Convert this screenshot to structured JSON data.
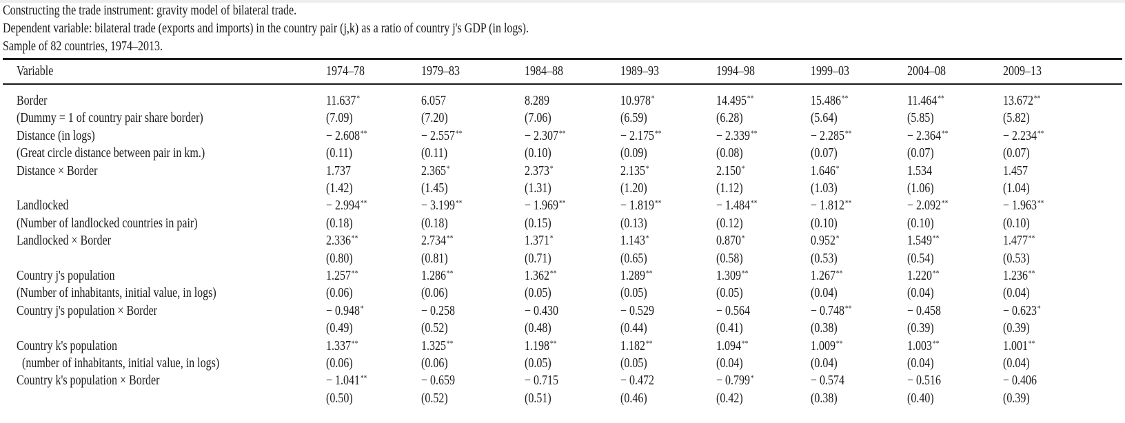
{
  "caption": {
    "line1": "Constructing the trade instrument: gravity model of bilateral trade.",
    "line2": "Dependent variable: bilateral trade (exports and imports) in the country pair (j,k) as a ratio of country j's GDP (in logs).",
    "line3": "Sample of 82 countries, 1974–2013."
  },
  "table": {
    "header": [
      "Variable",
      "1974–78",
      "1979–83",
      "1984–88",
      "1989–93",
      "1994–98",
      "1999–03",
      "2004–08",
      "2009–13"
    ],
    "rows": [
      {
        "label": "Border",
        "cells": [
          [
            "11.637",
            "*"
          ],
          [
            "6.057",
            ""
          ],
          [
            "8.289",
            ""
          ],
          [
            "10.978",
            "*"
          ],
          [
            "14.495",
            "**"
          ],
          [
            "15.486",
            "**"
          ],
          [
            "11.464",
            "**"
          ],
          [
            "13.672",
            "**"
          ]
        ]
      },
      {
        "label": "(Dummy = 1 of country pair share border)",
        "cells": [
          [
            "(7.09)",
            ""
          ],
          [
            "(7.20)",
            ""
          ],
          [
            "(7.06)",
            ""
          ],
          [
            "(6.59)",
            ""
          ],
          [
            "(6.28)",
            ""
          ],
          [
            "(5.64)",
            ""
          ],
          [
            "(5.85)",
            ""
          ],
          [
            "(5.82)",
            ""
          ]
        ]
      },
      {
        "label": "Distance (in logs)",
        "cells": [
          [
            "− 2.608",
            "**"
          ],
          [
            "− 2.557",
            "**"
          ],
          [
            "− 2.307",
            "**"
          ],
          [
            "− 2.175",
            "**"
          ],
          [
            "− 2.339",
            "**"
          ],
          [
            "− 2.285",
            "**"
          ],
          [
            "− 2.364",
            "**"
          ],
          [
            "− 2.234",
            "**"
          ]
        ]
      },
      {
        "label": "(Great circle distance between pair in km.)",
        "cells": [
          [
            "(0.11)",
            ""
          ],
          [
            "(0.11)",
            ""
          ],
          [
            "(0.10)",
            ""
          ],
          [
            "(0.09)",
            ""
          ],
          [
            "(0.08)",
            ""
          ],
          [
            "(0.07)",
            ""
          ],
          [
            "(0.07)",
            ""
          ],
          [
            "(0.07)",
            ""
          ]
        ]
      },
      {
        "label": "Distance × Border",
        "cells": [
          [
            "1.737",
            ""
          ],
          [
            "2.365",
            "*"
          ],
          [
            "2.373",
            "*"
          ],
          [
            "2.135",
            "*"
          ],
          [
            "2.150",
            "*"
          ],
          [
            "1.646",
            "*"
          ],
          [
            "1.534",
            ""
          ],
          [
            "1.457",
            ""
          ]
        ]
      },
      {
        "label": "",
        "cells": [
          [
            "(1.42)",
            ""
          ],
          [
            "(1.45)",
            ""
          ],
          [
            "(1.31)",
            ""
          ],
          [
            "(1.20)",
            ""
          ],
          [
            "(1.12)",
            ""
          ],
          [
            "(1.03)",
            ""
          ],
          [
            "(1.06)",
            ""
          ],
          [
            "(1.04)",
            ""
          ]
        ]
      },
      {
        "label": "Landlocked",
        "cells": [
          [
            "− 2.994",
            "**"
          ],
          [
            "− 3.199",
            "**"
          ],
          [
            "− 1.969",
            "**"
          ],
          [
            "− 1.819",
            "**"
          ],
          [
            "− 1.484",
            "**"
          ],
          [
            "− 1.812",
            "**"
          ],
          [
            "− 2.092",
            "**"
          ],
          [
            "− 1.963",
            "**"
          ]
        ]
      },
      {
        "label": "(Number of landlocked countries in pair)",
        "cells": [
          [
            "(0.18)",
            ""
          ],
          [
            "(0.18)",
            ""
          ],
          [
            "(0.15)",
            ""
          ],
          [
            "(0.13)",
            ""
          ],
          [
            "(0.12)",
            ""
          ],
          [
            "(0.10)",
            ""
          ],
          [
            "(0.10)",
            ""
          ],
          [
            "(0.10)",
            ""
          ]
        ]
      },
      {
        "label": "Landlocked × Border",
        "cells": [
          [
            "2.336",
            "**"
          ],
          [
            "2.734",
            "**"
          ],
          [
            "1.371",
            "*"
          ],
          [
            "1.143",
            "*"
          ],
          [
            "0.870",
            "*"
          ],
          [
            "0.952",
            "*"
          ],
          [
            "1.549",
            "**"
          ],
          [
            "1.477",
            "**"
          ]
        ]
      },
      {
        "label": "",
        "cells": [
          [
            "(0.80)",
            ""
          ],
          [
            "(0.81)",
            ""
          ],
          [
            "(0.71)",
            ""
          ],
          [
            "(0.65)",
            ""
          ],
          [
            "(0.58)",
            ""
          ],
          [
            "(0.53)",
            ""
          ],
          [
            "(0.54)",
            ""
          ],
          [
            "(0.53)",
            ""
          ]
        ]
      },
      {
        "label": "Country j's population",
        "cells": [
          [
            "1.257",
            "**"
          ],
          [
            "1.286",
            "**"
          ],
          [
            "1.362",
            "**"
          ],
          [
            "1.289",
            "**"
          ],
          [
            "1.309",
            "**"
          ],
          [
            "1.267",
            "**"
          ],
          [
            "1.220",
            "**"
          ],
          [
            "1.236",
            "**"
          ]
        ]
      },
      {
        "label": "(Number of inhabitants, initial value, in logs)",
        "cells": [
          [
            "(0.06)",
            ""
          ],
          [
            "(0.06)",
            ""
          ],
          [
            "(0.05)",
            ""
          ],
          [
            "(0.05)",
            ""
          ],
          [
            "(0.05)",
            ""
          ],
          [
            "(0.04)",
            ""
          ],
          [
            "(0.04)",
            ""
          ],
          [
            "(0.04)",
            ""
          ]
        ]
      },
      {
        "label": "Country j's population × Border",
        "cells": [
          [
            "− 0.948",
            "*"
          ],
          [
            "− 0.258",
            ""
          ],
          [
            "− 0.430",
            ""
          ],
          [
            "− 0.529",
            ""
          ],
          [
            "− 0.564",
            ""
          ],
          [
            "− 0.748",
            "**"
          ],
          [
            "− 0.458",
            ""
          ],
          [
            "− 0.623",
            "*"
          ]
        ]
      },
      {
        "label": "",
        "cells": [
          [
            "(0.49)",
            ""
          ],
          [
            "(0.52)",
            ""
          ],
          [
            "(0.48)",
            ""
          ],
          [
            "(0.44)",
            ""
          ],
          [
            "(0.41)",
            ""
          ],
          [
            "(0.38)",
            ""
          ],
          [
            "(0.39)",
            ""
          ],
          [
            "(0.39)",
            ""
          ]
        ]
      },
      {
        "label": "Country k's population",
        "cells": [
          [
            "1.337",
            "**"
          ],
          [
            "1.325",
            "**"
          ],
          [
            "1.198",
            "**"
          ],
          [
            "1.182",
            "**"
          ],
          [
            "1.094",
            "**"
          ],
          [
            "1.009",
            "**"
          ],
          [
            "1.003",
            "**"
          ],
          [
            "1.001",
            "**"
          ]
        ]
      },
      {
        "label": "  (number of inhabitants, initial value, in logs)",
        "cells": [
          [
            "(0.06)",
            ""
          ],
          [
            "(0.06)",
            ""
          ],
          [
            "(0.05)",
            ""
          ],
          [
            "(0.05)",
            ""
          ],
          [
            "(0.04)",
            ""
          ],
          [
            "(0.04)",
            ""
          ],
          [
            "(0.04)",
            ""
          ],
          [
            "(0.04)",
            ""
          ]
        ]
      },
      {
        "label": "Country k's population × Border",
        "cells": [
          [
            "− 1.041",
            "**"
          ],
          [
            "− 0.659",
            ""
          ],
          [
            "− 0.715",
            ""
          ],
          [
            "− 0.472",
            ""
          ],
          [
            "− 0.799",
            "*"
          ],
          [
            "− 0.574",
            ""
          ],
          [
            "− 0.516",
            ""
          ],
          [
            "− 0.406",
            ""
          ]
        ]
      },
      {
        "label": "",
        "cells": [
          [
            "(0.50)",
            ""
          ],
          [
            "(0.52)",
            ""
          ],
          [
            "(0.51)",
            ""
          ],
          [
            "(0.46)",
            ""
          ],
          [
            "(0.42)",
            ""
          ],
          [
            "(0.38)",
            ""
          ],
          [
            "(0.40)",
            ""
          ],
          [
            "(0.39)",
            ""
          ]
        ]
      }
    ]
  }
}
